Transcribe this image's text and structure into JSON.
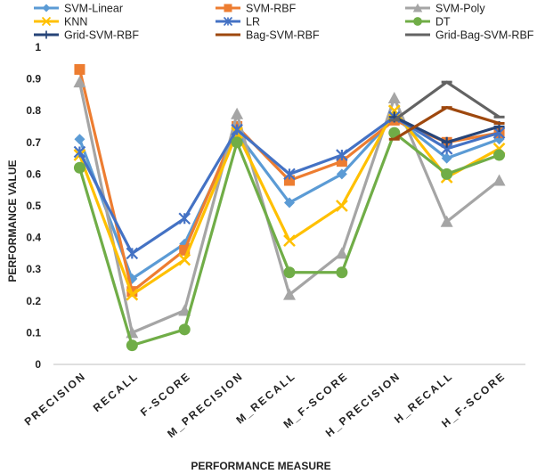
{
  "chart_data": {
    "type": "line",
    "xlabel": "PERFORMANCE MEASURE",
    "ylabel": "PERFORMANCE VALUE",
    "ylim": [
      0,
      1
    ],
    "yticks": [
      "0",
      "0.1",
      "0.2",
      "0.3",
      "0.4",
      "0.5",
      "0.6",
      "0.7",
      "0.8",
      "0.9",
      "1"
    ],
    "grid": false,
    "legend": "top",
    "categories": [
      "PRECISION",
      "RECALL",
      "F-SCORE",
      "M_PRECISION",
      "M_RECALL",
      "M_F-SCORE",
      "H_PRECISION",
      "H_RECALL",
      "H_F-SCORE"
    ],
    "series": [
      {
        "name": "SVM-Linear",
        "color": "#5B9BD5",
        "marker": "diamond",
        "values": [
          0.71,
          0.27,
          0.38,
          0.73,
          0.51,
          0.6,
          0.78,
          0.65,
          0.71
        ],
        "full": true
      },
      {
        "name": "SVM-RBF",
        "color": "#ED7D31",
        "marker": "square",
        "values": [
          0.93,
          0.23,
          0.36,
          0.75,
          0.58,
          0.64,
          0.77,
          0.7,
          0.73
        ],
        "full": true
      },
      {
        "name": "SVM-Poly",
        "color": "#A5A5A5",
        "marker": "triangle",
        "values": [
          0.89,
          0.1,
          0.17,
          0.79,
          0.22,
          0.35,
          0.84,
          0.45,
          0.58
        ],
        "full": true
      },
      {
        "name": "KNN",
        "color": "#FFC000",
        "marker": "x",
        "values": [
          0.66,
          0.22,
          0.33,
          0.73,
          0.39,
          0.5,
          0.8,
          0.59,
          0.68
        ],
        "full": true
      },
      {
        "name": "LR",
        "color": "#4472C4",
        "marker": "star",
        "values": [
          0.67,
          0.35,
          0.46,
          0.74,
          0.6,
          0.66,
          0.78,
          0.68,
          0.73
        ],
        "full": true
      },
      {
        "name": "DT",
        "color": "#70AD47",
        "marker": "circle",
        "values": [
          0.62,
          0.06,
          0.11,
          0.7,
          0.29,
          0.29,
          0.73,
          0.6,
          0.66
        ],
        "full": true
      },
      {
        "name": "Grid-SVM-RBF",
        "color": "#264478",
        "marker": "plus",
        "values": [
          null,
          null,
          null,
          null,
          null,
          null,
          0.78,
          0.7,
          0.75
        ],
        "full": false
      },
      {
        "name": "Bag-SVM-RBF",
        "color": "#9E480E",
        "marker": "dash",
        "values": [
          null,
          null,
          null,
          null,
          null,
          null,
          0.71,
          0.81,
          0.76
        ],
        "full": false
      },
      {
        "name": "Grid-Bag-SVM-RBF",
        "color": "#636363",
        "marker": "dash",
        "values": [
          null,
          null,
          null,
          null,
          null,
          null,
          0.77,
          0.89,
          0.78
        ],
        "full": false
      }
    ]
  }
}
